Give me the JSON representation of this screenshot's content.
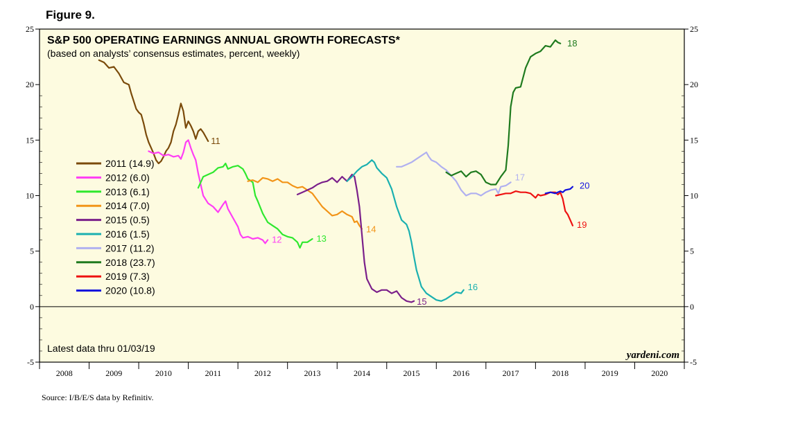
{
  "figure_label": "Figure 9.",
  "source": "Source: I/B/E/S data by Refinitiv.",
  "brand": "yardeni.com",
  "latest_note": "Latest data thru 01/03/19",
  "colors": {
    "panel_bg": "#fdfbe0",
    "s2011": "#7a4a0a",
    "s2012": "#ff3df5",
    "s2013": "#2ee82e",
    "s2014": "#f29418",
    "s2015": "#7a1f8a",
    "s2016": "#1ab0b0",
    "s2017": "#b0b0f0",
    "s2018": "#1e7a1e",
    "s2019": "#ee1111",
    "s2020": "#1111dd"
  },
  "chart_data": {
    "type": "line",
    "title": "S&P 500 OPERATING EARNINGS ANNUAL GROWTH FORECASTS*",
    "subtitle": "(based on analysts’ consensus estimates, percent, weekly)",
    "xlabel": "",
    "ylabel": "",
    "x_range": [
      2008,
      2021
    ],
    "ylim": [
      -5,
      25
    ],
    "y_ticks": [
      "-5",
      "0",
      "5",
      "10",
      "15",
      "20",
      "25"
    ],
    "x_tick_labels": [
      "2008",
      "2009",
      "2010",
      "2011",
      "2012",
      "2013",
      "2014",
      "2015",
      "2016",
      "2017",
      "2018",
      "2019",
      "2020"
    ],
    "zero_line": 0,
    "series": [
      {
        "name": "2011",
        "legend": "2011 (14.9)",
        "end_label": "11",
        "color_key": "s2011",
        "points": [
          [
            2009.2,
            22.2
          ],
          [
            2009.3,
            22.0
          ],
          [
            2009.4,
            21.5
          ],
          [
            2009.5,
            21.6
          ],
          [
            2009.6,
            21.0
          ],
          [
            2009.7,
            20.2
          ],
          [
            2009.8,
            20.0
          ],
          [
            2009.85,
            19.2
          ],
          [
            2009.9,
            18.5
          ],
          [
            2009.95,
            17.8
          ],
          [
            2010.0,
            17.5
          ],
          [
            2010.05,
            17.3
          ],
          [
            2010.1,
            16.5
          ],
          [
            2010.15,
            15.5
          ],
          [
            2010.2,
            14.8
          ],
          [
            2010.25,
            14.3
          ],
          [
            2010.3,
            13.8
          ],
          [
            2010.35,
            13.2
          ],
          [
            2010.4,
            12.9
          ],
          [
            2010.45,
            13.1
          ],
          [
            2010.5,
            13.5
          ],
          [
            2010.55,
            14.0
          ],
          [
            2010.6,
            14.3
          ],
          [
            2010.65,
            14.8
          ],
          [
            2010.7,
            15.8
          ],
          [
            2010.75,
            16.4
          ],
          [
            2010.8,
            17.3
          ],
          [
            2010.85,
            18.3
          ],
          [
            2010.9,
            17.6
          ],
          [
            2010.95,
            16.1
          ],
          [
            2011.0,
            16.7
          ],
          [
            2011.05,
            16.3
          ],
          [
            2011.1,
            15.8
          ],
          [
            2011.15,
            15.1
          ],
          [
            2011.2,
            15.8
          ],
          [
            2011.25,
            16.0
          ],
          [
            2011.3,
            15.7
          ],
          [
            2011.35,
            15.3
          ],
          [
            2011.4,
            14.9
          ]
        ]
      },
      {
        "name": "2012",
        "legend": "2012 (6.0)",
        "end_label": "12",
        "color_key": "s2012",
        "points": [
          [
            2010.2,
            14.0
          ],
          [
            2010.3,
            13.8
          ],
          [
            2010.4,
            13.9
          ],
          [
            2010.5,
            13.6
          ],
          [
            2010.6,
            13.7
          ],
          [
            2010.7,
            13.5
          ],
          [
            2010.8,
            13.6
          ],
          [
            2010.85,
            13.3
          ],
          [
            2010.9,
            13.9
          ],
          [
            2010.95,
            14.8
          ],
          [
            2011.0,
            15.0
          ],
          [
            2011.05,
            14.3
          ],
          [
            2011.1,
            13.7
          ],
          [
            2011.15,
            13.2
          ],
          [
            2011.2,
            12.0
          ],
          [
            2011.25,
            11.0
          ],
          [
            2011.3,
            10.0
          ],
          [
            2011.4,
            9.3
          ],
          [
            2011.5,
            9.0
          ],
          [
            2011.6,
            8.5
          ],
          [
            2011.7,
            9.2
          ],
          [
            2011.75,
            9.5
          ],
          [
            2011.8,
            8.8
          ],
          [
            2011.9,
            8.0
          ],
          [
            2012.0,
            7.2
          ],
          [
            2012.05,
            6.5
          ],
          [
            2012.1,
            6.2
          ],
          [
            2012.2,
            6.3
          ],
          [
            2012.3,
            6.1
          ],
          [
            2012.4,
            6.2
          ],
          [
            2012.5,
            6.0
          ],
          [
            2012.55,
            5.7
          ],
          [
            2012.6,
            6.0
          ]
        ]
      },
      {
        "name": "2013",
        "legend": "2013 (6.1)",
        "end_label": "13",
        "color_key": "s2013",
        "points": [
          [
            2011.2,
            10.7
          ],
          [
            2011.3,
            11.7
          ],
          [
            2011.4,
            11.9
          ],
          [
            2011.5,
            12.1
          ],
          [
            2011.6,
            12.5
          ],
          [
            2011.7,
            12.6
          ],
          [
            2011.75,
            12.9
          ],
          [
            2011.8,
            12.4
          ],
          [
            2011.9,
            12.6
          ],
          [
            2012.0,
            12.7
          ],
          [
            2012.1,
            12.4
          ],
          [
            2012.15,
            12.0
          ],
          [
            2012.2,
            11.5
          ],
          [
            2012.3,
            11.2
          ],
          [
            2012.35,
            10.0
          ],
          [
            2012.4,
            9.5
          ],
          [
            2012.5,
            8.4
          ],
          [
            2012.6,
            7.6
          ],
          [
            2012.7,
            7.3
          ],
          [
            2012.8,
            7.0
          ],
          [
            2012.9,
            6.5
          ],
          [
            2013.0,
            6.3
          ],
          [
            2013.1,
            6.2
          ],
          [
            2013.2,
            5.8
          ],
          [
            2013.25,
            5.3
          ],
          [
            2013.3,
            5.8
          ],
          [
            2013.4,
            5.8
          ],
          [
            2013.5,
            6.1
          ]
        ]
      },
      {
        "name": "2014",
        "legend": "2014 (7.0)",
        "end_label": "14",
        "color_key": "s2014",
        "points": [
          [
            2012.2,
            11.3
          ],
          [
            2012.3,
            11.4
          ],
          [
            2012.4,
            11.2
          ],
          [
            2012.5,
            11.6
          ],
          [
            2012.6,
            11.5
          ],
          [
            2012.7,
            11.3
          ],
          [
            2012.8,
            11.5
          ],
          [
            2012.9,
            11.2
          ],
          [
            2013.0,
            11.2
          ],
          [
            2013.1,
            10.9
          ],
          [
            2013.2,
            10.7
          ],
          [
            2013.3,
            10.8
          ],
          [
            2013.4,
            10.5
          ],
          [
            2013.5,
            10.2
          ],
          [
            2013.6,
            9.6
          ],
          [
            2013.7,
            9.0
          ],
          [
            2013.8,
            8.6
          ],
          [
            2013.9,
            8.2
          ],
          [
            2014.0,
            8.3
          ],
          [
            2014.1,
            8.6
          ],
          [
            2014.2,
            8.3
          ],
          [
            2014.3,
            8.1
          ],
          [
            2014.35,
            7.6
          ],
          [
            2014.4,
            7.7
          ],
          [
            2014.45,
            7.3
          ],
          [
            2014.5,
            7.0
          ]
        ]
      },
      {
        "name": "2015",
        "legend": "2015 (0.5)",
        "end_label": "15",
        "color_key": "s2015",
        "points": [
          [
            2013.2,
            10.1
          ],
          [
            2013.3,
            10.3
          ],
          [
            2013.4,
            10.5
          ],
          [
            2013.5,
            10.7
          ],
          [
            2013.6,
            11.0
          ],
          [
            2013.7,
            11.2
          ],
          [
            2013.8,
            11.3
          ],
          [
            2013.9,
            11.6
          ],
          [
            2014.0,
            11.2
          ],
          [
            2014.1,
            11.7
          ],
          [
            2014.2,
            11.3
          ],
          [
            2014.3,
            11.9
          ],
          [
            2014.35,
            11.7
          ],
          [
            2014.4,
            10.5
          ],
          [
            2014.45,
            9.0
          ],
          [
            2014.5,
            6.5
          ],
          [
            2014.55,
            4.0
          ],
          [
            2014.6,
            2.5
          ],
          [
            2014.7,
            1.6
          ],
          [
            2014.8,
            1.3
          ],
          [
            2014.9,
            1.5
          ],
          [
            2015.0,
            1.5
          ],
          [
            2015.1,
            1.2
          ],
          [
            2015.2,
            1.4
          ],
          [
            2015.3,
            0.8
          ],
          [
            2015.4,
            0.5
          ],
          [
            2015.5,
            0.4
          ],
          [
            2015.55,
            0.5
          ]
        ]
      },
      {
        "name": "2016",
        "legend": "2016 (1.5)",
        "end_label": "16",
        "color_key": "s2016",
        "points": [
          [
            2014.2,
            11.3
          ],
          [
            2014.3,
            11.7
          ],
          [
            2014.4,
            12.2
          ],
          [
            2014.5,
            12.6
          ],
          [
            2014.6,
            12.8
          ],
          [
            2014.7,
            13.2
          ],
          [
            2014.75,
            13.0
          ],
          [
            2014.8,
            12.5
          ],
          [
            2014.9,
            12.0
          ],
          [
            2015.0,
            11.6
          ],
          [
            2015.1,
            10.6
          ],
          [
            2015.2,
            9.0
          ],
          [
            2015.3,
            7.8
          ],
          [
            2015.4,
            7.4
          ],
          [
            2015.45,
            6.8
          ],
          [
            2015.5,
            5.8
          ],
          [
            2015.55,
            4.5
          ],
          [
            2015.6,
            3.3
          ],
          [
            2015.7,
            1.8
          ],
          [
            2015.8,
            1.2
          ],
          [
            2015.9,
            0.9
          ],
          [
            2016.0,
            0.6
          ],
          [
            2016.1,
            0.5
          ],
          [
            2016.15,
            0.6
          ],
          [
            2016.2,
            0.7
          ],
          [
            2016.3,
            1.0
          ],
          [
            2016.4,
            1.3
          ],
          [
            2016.5,
            1.2
          ],
          [
            2016.55,
            1.5
          ]
        ]
      },
      {
        "name": "2017",
        "legend": "2017 (11.2)",
        "end_label": "17",
        "color_key": "s2017",
        "points": [
          [
            2015.2,
            12.6
          ],
          [
            2015.3,
            12.6
          ],
          [
            2015.4,
            12.8
          ],
          [
            2015.5,
            13.0
          ],
          [
            2015.6,
            13.3
          ],
          [
            2015.7,
            13.6
          ],
          [
            2015.8,
            13.9
          ],
          [
            2015.85,
            13.5
          ],
          [
            2015.9,
            13.2
          ],
          [
            2016.0,
            13.0
          ],
          [
            2016.1,
            12.6
          ],
          [
            2016.2,
            12.3
          ],
          [
            2016.3,
            11.8
          ],
          [
            2016.4,
            11.3
          ],
          [
            2016.5,
            10.5
          ],
          [
            2016.6,
            10.0
          ],
          [
            2016.7,
            10.2
          ],
          [
            2016.8,
            10.2
          ],
          [
            2016.9,
            10.0
          ],
          [
            2017.0,
            10.3
          ],
          [
            2017.1,
            10.5
          ],
          [
            2017.2,
            10.6
          ],
          [
            2017.25,
            10.2
          ],
          [
            2017.3,
            10.8
          ],
          [
            2017.4,
            10.9
          ],
          [
            2017.5,
            11.2
          ]
        ]
      },
      {
        "name": "2018",
        "legend": "2018 (23.7)",
        "end_label": "18",
        "color_key": "s2018",
        "points": [
          [
            2016.2,
            12.1
          ],
          [
            2016.3,
            11.8
          ],
          [
            2016.4,
            12.0
          ],
          [
            2016.5,
            12.2
          ],
          [
            2016.6,
            11.7
          ],
          [
            2016.7,
            12.1
          ],
          [
            2016.8,
            12.2
          ],
          [
            2016.9,
            11.9
          ],
          [
            2017.0,
            11.2
          ],
          [
            2017.1,
            11.0
          ],
          [
            2017.2,
            11.0
          ],
          [
            2017.3,
            11.7
          ],
          [
            2017.4,
            12.3
          ],
          [
            2017.45,
            14.5
          ],
          [
            2017.5,
            18.0
          ],
          [
            2017.55,
            19.3
          ],
          [
            2017.6,
            19.7
          ],
          [
            2017.7,
            19.8
          ],
          [
            2017.8,
            21.5
          ],
          [
            2017.9,
            22.5
          ],
          [
            2018.0,
            22.8
          ],
          [
            2018.1,
            23.0
          ],
          [
            2018.2,
            23.5
          ],
          [
            2018.3,
            23.4
          ],
          [
            2018.4,
            24.0
          ],
          [
            2018.45,
            23.8
          ],
          [
            2018.5,
            23.7
          ]
        ]
      },
      {
        "name": "2019",
        "legend": "2019 (7.3)",
        "end_label": "19",
        "color_key": "s2019",
        "points": [
          [
            2017.2,
            10.0
          ],
          [
            2017.3,
            10.1
          ],
          [
            2017.4,
            10.2
          ],
          [
            2017.5,
            10.2
          ],
          [
            2017.6,
            10.4
          ],
          [
            2017.7,
            10.3
          ],
          [
            2017.8,
            10.3
          ],
          [
            2017.9,
            10.2
          ],
          [
            2018.0,
            9.8
          ],
          [
            2018.05,
            10.1
          ],
          [
            2018.1,
            10.0
          ],
          [
            2018.2,
            10.1
          ],
          [
            2018.3,
            10.3
          ],
          [
            2018.4,
            10.3
          ],
          [
            2018.45,
            10.1
          ],
          [
            2018.5,
            10.3
          ],
          [
            2018.55,
            9.7
          ],
          [
            2018.6,
            8.6
          ],
          [
            2018.65,
            8.3
          ],
          [
            2018.7,
            7.8
          ],
          [
            2018.75,
            7.3
          ]
        ]
      },
      {
        "name": "2020",
        "legend": "2020 (10.8)",
        "end_label": "20",
        "color_key": "s2020",
        "points": [
          [
            2018.2,
            10.2
          ],
          [
            2018.3,
            10.3
          ],
          [
            2018.4,
            10.2
          ],
          [
            2018.5,
            10.4
          ],
          [
            2018.55,
            10.3
          ],
          [
            2018.6,
            10.5
          ],
          [
            2018.7,
            10.6
          ],
          [
            2018.75,
            10.8
          ]
        ]
      }
    ]
  }
}
